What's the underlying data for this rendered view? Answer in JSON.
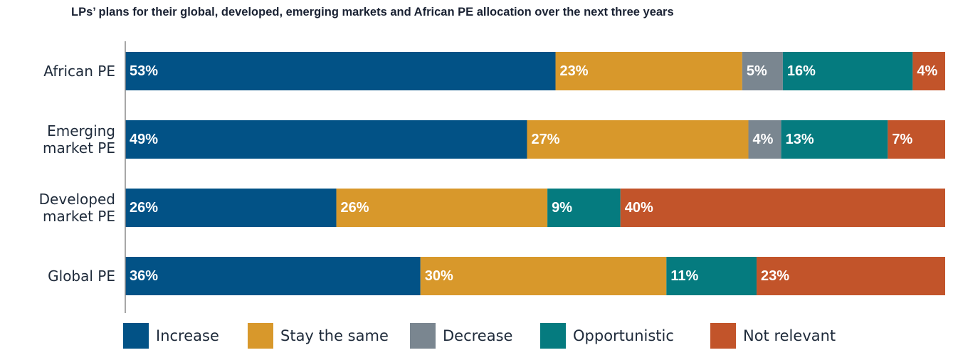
{
  "chart_data": {
    "type": "bar",
    "orientation": "horizontal",
    "stacked": true,
    "title": "LPs’ plans for their global, developed, emerging markets and African PE allocation over the next three years",
    "xlabel": "",
    "ylabel": "",
    "xlim": [
      0,
      100
    ],
    "grid": false,
    "legend_position": "bottom",
    "categories": [
      [
        "African PE"
      ],
      [
        "Emerging",
        "market PE"
      ],
      [
        "Developed",
        "market PE"
      ],
      [
        "Global PE"
      ]
    ],
    "series": [
      {
        "name": "Increase",
        "color": "#025286",
        "values": [
          53,
          49,
          26,
          36
        ],
        "labels": [
          "53%",
          "49%",
          "26%",
          "36%"
        ]
      },
      {
        "name": "Stay the same",
        "color": "#D8982B",
        "values": [
          23,
          27,
          26,
          30
        ],
        "labels": [
          "23%",
          "27%",
          "26%",
          "30%"
        ]
      },
      {
        "name": "Decrease",
        "color": "#7A8690",
        "values": [
          5,
          4,
          0,
          0
        ],
        "labels": [
          "5%",
          "4%",
          "",
          ""
        ]
      },
      {
        "name": "Opportunistic",
        "color": "#057B7F",
        "values": [
          16,
          13,
          9,
          11
        ],
        "labels": [
          "16%",
          "13%",
          "9%",
          "11%"
        ]
      },
      {
        "name": "Not relevant",
        "color": "#C2542A",
        "values": [
          4,
          7,
          40,
          23
        ],
        "labels": [
          "4%",
          "7%",
          "40%",
          "23%"
        ]
      }
    ]
  }
}
